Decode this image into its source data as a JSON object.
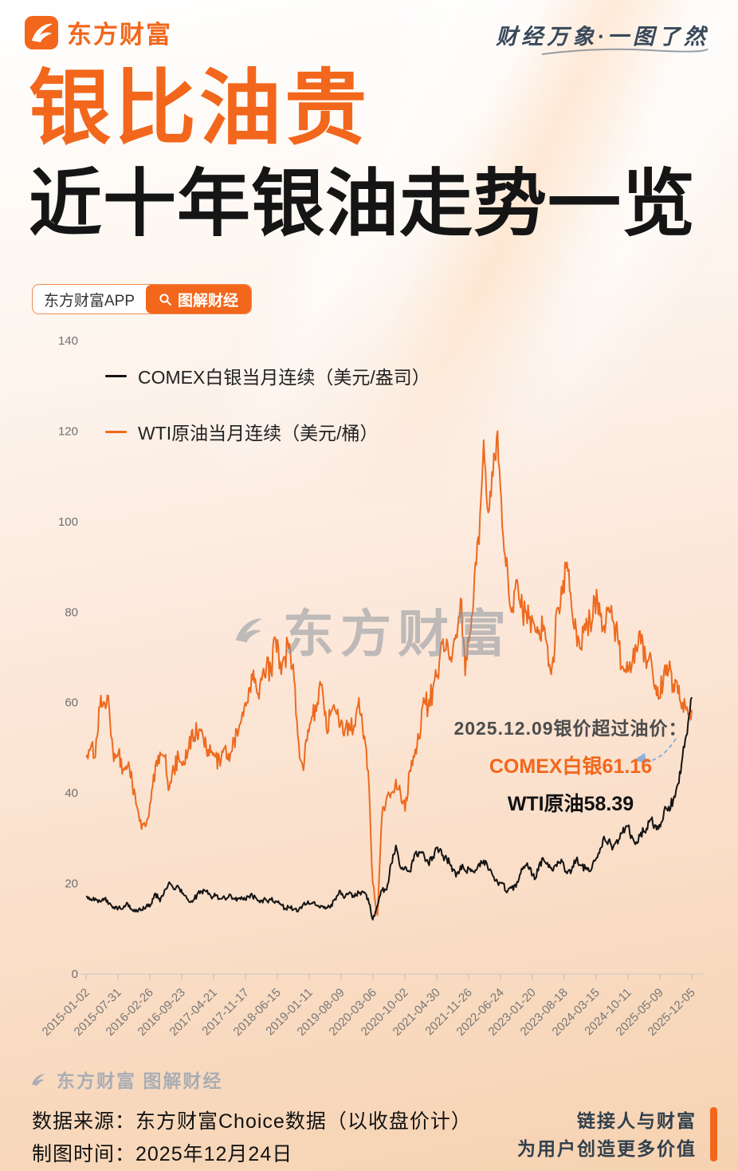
{
  "header": {
    "brand": "东方财富",
    "tagline": "财经万象·一图了然"
  },
  "title": {
    "line1": "银比油贵",
    "line2": "近十年银油走势一览"
  },
  "badge": {
    "app_label": "东方财富APP",
    "button_label": "图解财经"
  },
  "watermarks": {
    "center": "东方财富",
    "footer": "东方财富 图解财经"
  },
  "footer": {
    "source": "数据来源：东方财富Choice数据（以收盘价计）",
    "made": "制图时间：2025年12月24日",
    "slogan_line1": "链接人与财富",
    "slogan_line2": "为用户创造更多价值"
  },
  "colors": {
    "accent": "#f2671c",
    "oil": "#ee6a1e",
    "silver": "#141414",
    "arrow": "#8ab0dc"
  },
  "chart_data": {
    "type": "line",
    "title": "近十年银油走势一览",
    "ylim": [
      0,
      140
    ],
    "yticks": [
      0,
      20,
      40,
      60,
      80,
      100,
      120,
      140
    ],
    "x_start": "2015-01",
    "x_end": "2025-12",
    "x_frequency": "monthly",
    "x_count": 132,
    "grid": false,
    "legend_position": "top-left-inside",
    "x_tick_labels": [
      "2015-01-02",
      "2015-07-31",
      "2016-02-26",
      "2016-09-23",
      "2017-04-21",
      "2017-11-17",
      "2018-06-15",
      "2019-01-11",
      "2019-08-09",
      "2020-03-06",
      "2020-10-02",
      "2021-04-30",
      "2021-11-26",
      "2022-06-24",
      "2023-01-20",
      "2023-08-18",
      "2024-03-15",
      "2024-10-11",
      "2025-05-09",
      "2025-12-05"
    ],
    "series": [
      {
        "name": "COMEX白银当月连续（美元/盎司）",
        "color": "#141414",
        "values": [
          17.2,
          16.6,
          16.7,
          16.1,
          16.7,
          15.7,
          14.8,
          14.6,
          14.5,
          15.6,
          14.1,
          13.8,
          14.2,
          14.9,
          15.4,
          17.8,
          16.0,
          18.6,
          20.3,
          18.7,
          19.2,
          17.8,
          16.5,
          15.9,
          17.5,
          18.3,
          18.2,
          17.2,
          17.3,
          16.6,
          16.8,
          17.6,
          16.7,
          16.7,
          16.4,
          17.1,
          17.2,
          16.4,
          16.3,
          16.3,
          16.4,
          16.1,
          15.5,
          14.5,
          14.7,
          14.3,
          14.2,
          15.5,
          16.1,
          15.6,
          15.1,
          15.0,
          14.6,
          15.3,
          16.4,
          18.3,
          17.0,
          18.1,
          17.0,
          17.9,
          18.0,
          16.7,
          12.0,
          15.0,
          18.5,
          18.6,
          24.4,
          28.4,
          23.5,
          23.7,
          22.6,
          26.4,
          27.0,
          26.7,
          24.5,
          25.9,
          28.0,
          26.2,
          25.5,
          24.0,
          21.5,
          23.9,
          22.8,
          23.3,
          22.4,
          24.4,
          25.1,
          23.0,
          21.7,
          20.3,
          20.2,
          18.0,
          19.0,
          19.2,
          22.2,
          24.0,
          23.6,
          20.9,
          24.2,
          25.1,
          23.6,
          22.8,
          24.9,
          24.8,
          22.2,
          22.9,
          25.3,
          24.0,
          23.2,
          22.7,
          25.0,
          26.7,
          30.4,
          29.5,
          28.0,
          28.8,
          31.2,
          32.7,
          30.6,
          29.2,
          31.3,
          31.2,
          34.1,
          32.9,
          33.0,
          36.0,
          37.0,
          38.5,
          42.0,
          48.0,
          53.0,
          61.16
        ]
      },
      {
        "name": "WTI原油当月连续（美元/桶）",
        "color": "#ee6a1e",
        "values": [
          48,
          50,
          48,
          59,
          60,
          59,
          47,
          49,
          45,
          46,
          42,
          37,
          32,
          33,
          38,
          46,
          49,
          48,
          41,
          45,
          48,
          47,
          49,
          54,
          53,
          54,
          50,
          49,
          48,
          46,
          50,
          47,
          52,
          54,
          57,
          60,
          65,
          62,
          65,
          68,
          67,
          74,
          69,
          70,
          73,
          65,
          51,
          45,
          54,
          57,
          60,
          64,
          54,
          58,
          58,
          55,
          54,
          54,
          55,
          61,
          52,
          45,
          20,
          13,
          35,
          39,
          40,
          43,
          40,
          36,
          45,
          48,
          52,
          61,
          59,
          63,
          66,
          73,
          74,
          69,
          75,
          83,
          66,
          75,
          88,
          95,
          118,
          102,
          110,
          120,
          99,
          92,
          80,
          87,
          81,
          80,
          79,
          77,
          76,
          77,
          68,
          70,
          81,
          84,
          91,
          81,
          76,
          72,
          76,
          78,
          83,
          82,
          77,
          81,
          78,
          74,
          68,
          69,
          68,
          72,
          73,
          70,
          71,
          63,
          61,
          67,
          67,
          64,
          62,
          60,
          59,
          58.39
        ]
      }
    ],
    "annotation": {
      "date": "2025.12.09",
      "line1": "2025.12.09银价超过油价：",
      "line2": "COMEX白银61.16",
      "line3": "WTI原油58.39",
      "silver_value": 61.16,
      "oil_value": 58.39
    }
  }
}
